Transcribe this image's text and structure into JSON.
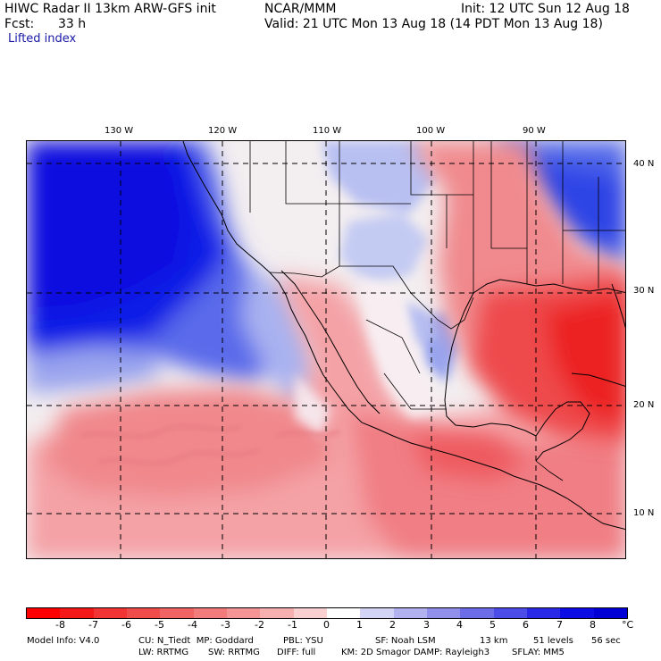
{
  "header": {
    "title_left": "HIWC Radar II 13km ARW-GFS init",
    "center": "NCAR/MMM",
    "init": "Init: 12 UTC Sun 12 Aug 18",
    "fcst_label": "Fcst:",
    "fcst_value": "33 h",
    "valid": "Valid: 21 UTC Mon 13 Aug 18 (14 PDT Mon 13 Aug 18)",
    "field": "Lifted index"
  },
  "map": {
    "longitude_labels": [
      "130 W",
      "120 W",
      "110 W",
      "100 W",
      "90 W"
    ],
    "latitude_labels": [
      "40 N",
      "30 N",
      "20 N",
      "10 N"
    ],
    "colors": {
      "ocean_stable": "#0a14e6",
      "neutral": "#f4f1f1",
      "unstable": "#f07070",
      "strong_unstable": "#ee2020"
    }
  },
  "colorbar": {
    "labels": [
      "-8",
      "-7",
      "-6",
      "-5",
      "-4",
      "-3",
      "-2",
      "-1",
      "0",
      "1",
      "2",
      "3",
      "4",
      "5",
      "6",
      "7",
      "8"
    ],
    "unit": "°C",
    "colors": [
      "#ff0000",
      "#f51818",
      "#f23434",
      "#f04c4c",
      "#f06464",
      "#f27c7c",
      "#f49494",
      "#f7b0b0",
      "#fad0d0",
      "#ffffff",
      "#d4d4f6",
      "#b2b2f0",
      "#9090ea",
      "#6c6ce8",
      "#4c4ce8",
      "#2a2ae6",
      "#0c0ce4",
      "#0000d6"
    ]
  },
  "model_info": {
    "line1_a": "Model Info: V4.0",
    "line1_b": "CU: N_Tiedt  MP: Goddard",
    "line1_c": "PBL: YSU",
    "line1_d": "SF: Noah LSM",
    "line1_e": "13 km",
    "line1_f": "51 levels",
    "line1_g": "56 sec",
    "line2_a": "LW: RRTMG",
    "line2_b": "SW: RRTMG",
    "line2_c": "DIFF: full",
    "line2_d": "KM: 2D Smagor DAMP: Rayleigh3",
    "line2_e": "SFLAY: MM5"
  }
}
